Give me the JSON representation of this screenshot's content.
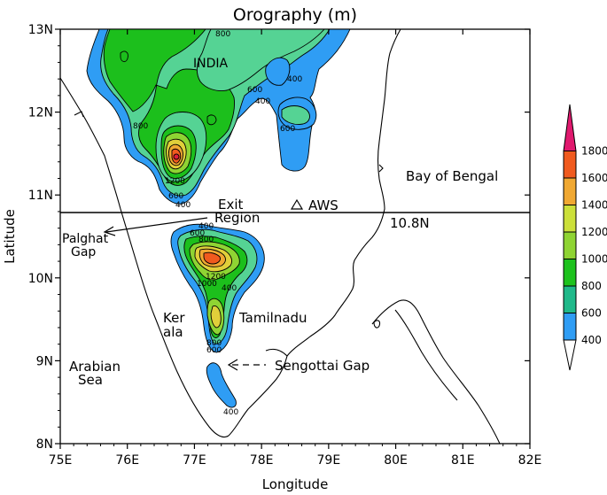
{
  "map": {
    "title": "Orography (m)",
    "xlabel": "Longitude",
    "ylabel": "Latitude",
    "x_ticks": [
      "75E",
      "76E",
      "77E",
      "78E",
      "79E",
      "80E",
      "81E",
      "82E"
    ],
    "y_ticks": [
      "8N",
      "9N",
      "10N",
      "11N",
      "12N",
      "13N"
    ],
    "reference_line": {
      "latitude": 10.8,
      "label": "10.8N"
    },
    "places": {
      "india": "INDIA",
      "bay": "Bay of Bengal",
      "aws": "AWS",
      "exit_line1": "Exit",
      "exit_line2": "Region",
      "palghat_line1": "Palghat",
      "palghat_line2": "Gap",
      "kerala_line1": "Ker",
      "kerala_line2": "ala",
      "tamilnadu": "Tamilnadu",
      "arabian_line1": "Arabian",
      "arabian_line2": "Sea",
      "sengottai": "Sengottai Gap"
    },
    "contour_labels": [
      "800",
      "400",
      "600",
      "400",
      "800",
      "600",
      "1200",
      "600",
      "400",
      "400",
      "600",
      "800",
      "1200",
      "1000",
      "400",
      "800",
      "600",
      "400"
    ],
    "colorbar": {
      "levels": [
        400,
        600,
        800,
        1000,
        1200,
        1400,
        1600,
        1800
      ],
      "labels": [
        "400",
        "600",
        "800",
        "1000",
        "1200",
        "1400",
        "1600",
        "1800"
      ],
      "colors": [
        "#2f9df4",
        "#20b98a",
        "#1dc21d",
        "#8fd433",
        "#cce03a",
        "#f0a832",
        "#f05a1e",
        "#e0196e"
      ]
    },
    "fill_colors": {
      "c400": "#2f9df4",
      "c600": "#55d394",
      "c800": "#1cbf1c",
      "c1000": "#8fd433",
      "c1200": "#e0cf3a",
      "c1400": "#f0a832",
      "c1600": "#f05a1e",
      "c1800": "#e01c3c"
    }
  }
}
